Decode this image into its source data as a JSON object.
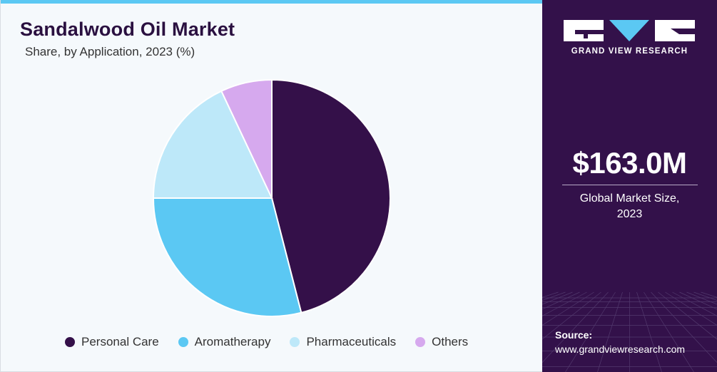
{
  "header": {
    "title": "Sandalwood Oil Market",
    "subtitle": "Share, by Application, 2023  (%)"
  },
  "sidebar": {
    "brand": "GRAND VIEW RESEARCH",
    "market_size": "$163.0M",
    "market_size_label_line1": "Global Market Size,",
    "market_size_label_line2": "2023",
    "source_label": "Source:",
    "source_url": "www.grandviewresearch.com"
  },
  "colors": {
    "accent_bar": "#5bc8f3",
    "sidebar_bg": "#33114a",
    "title": "#2a1040"
  },
  "chart_data": {
    "type": "pie",
    "title": "Sandalwood Oil Market",
    "subtitle": "Share, by Application, 2023  (%)",
    "categories": [
      "Personal Care",
      "Aromatherapy",
      "Pharmaceuticals",
      "Others"
    ],
    "values": [
      46,
      29,
      18,
      7
    ],
    "colors": [
      "#341049",
      "#5bc8f3",
      "#bde8f9",
      "#d6a9ee"
    ],
    "legend_position": "bottom"
  }
}
